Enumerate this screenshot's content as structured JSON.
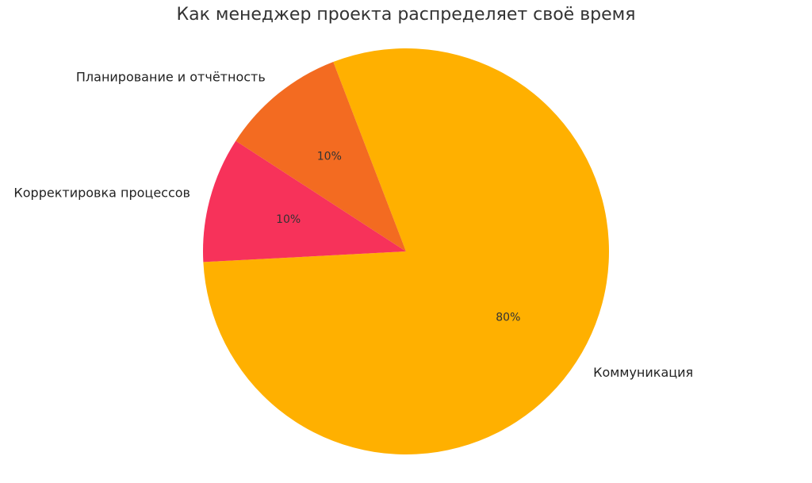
{
  "chart_data": {
    "type": "pie",
    "title": "Как менеджер проекта распределяет своё время",
    "slices": [
      {
        "label": "Коммуникация",
        "value": 80,
        "pct_label": "80%",
        "color": "#FFB000"
      },
      {
        "label": "Корректировка процессов",
        "value": 10,
        "pct_label": "10%",
        "color": "#F7325A"
      },
      {
        "label": "Планирование и отчётность",
        "value": 10,
        "pct_label": "10%",
        "color": "#F36B21"
      }
    ],
    "start_angle_deg": -21,
    "direction": "clockwise",
    "legend": "none"
  }
}
